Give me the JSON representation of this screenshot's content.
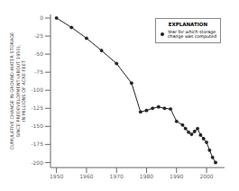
{
  "chart_data": {
    "type": "line",
    "x": [
      1950,
      1955,
      1960,
      1965,
      1970,
      1975,
      1978,
      1980,
      1982,
      1984,
      1986,
      1988,
      1990,
      1992,
      1993,
      1994,
      1995,
      1996,
      1997,
      1998,
      1999,
      2000,
      2001,
      2002,
      2003
    ],
    "series": [
      {
        "name": "Year for which storage\nchange was computed",
        "color": "#222222",
        "marker": "circle",
        "line_style": "solid",
        "values": [
          0,
          -13,
          -28,
          -45,
          -63,
          -90,
          -130,
          -128,
          -125,
          -123,
          -125,
          -126,
          -143,
          -148,
          -153,
          -158,
          -161,
          -157,
          -153,
          -162,
          -167,
          -172,
          -183,
          -193,
          -200
        ]
      }
    ],
    "xlim": [
      1948,
      2006
    ],
    "ylim": [
      -207,
      5
    ],
    "xticks": [
      1950,
      1960,
      1970,
      1980,
      1990,
      2000
    ],
    "yticks": [
      0,
      -25,
      -50,
      -75,
      -100,
      -125,
      -150,
      -175,
      -200
    ],
    "ylabel": "CUMULATIVE CHANGE IN GROUND-WATER STORAGE\nSINCE PREDEVELOPMENT (ABOUT 1950),\nIN MILLIONS OF ACRE-FEET",
    "legend_title": "EXPLANATION",
    "legend": "upper right",
    "grid": false
  }
}
